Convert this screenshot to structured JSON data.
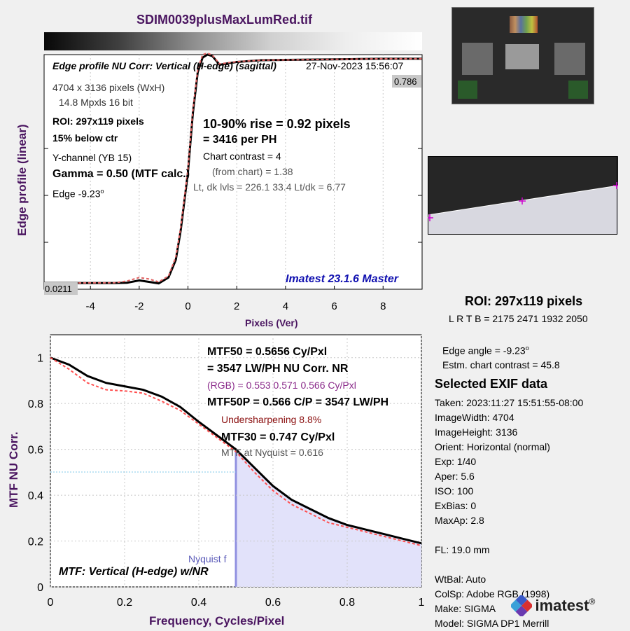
{
  "title": "SDIM0039plusMaxLumRed.tif",
  "edge_panel": {
    "heading": "Edge profile  NU Corr: Vertical (H-edge) (sagittal)",
    "date": "27-Nov-2023 15:56:07",
    "pixels": "4704 x 3136 pixels (WxH)",
    "mpxls": "14.8 Mpxls   16 bit",
    "roi": "ROI:  297x119 pixels",
    "below": "15% below ctr",
    "channel": "Y-channel  (YB 15)",
    "gamma": "Gamma = 0.50 (MTF calc.)",
    "edge_prefix": "Edge  -9.23",
    "edge_suffix": "o",
    "rise": "10-90% rise = 0.92 pixels",
    "per_ph": "=   3416 per PH",
    "contrast": "Chart contrast = 4",
    "from_chart": "(from chart) =  1.38",
    "levels": "Lt, dk lvls = 226.1  33.4  Lt/dk = 6.77",
    "version": "Imatest 23.1.6 Master",
    "right_value": "0.786",
    "left_value": "0.0211",
    "ylabel": "Edge profile (linear)",
    "xlabel": "Pixels (Ver)"
  },
  "mtf_panel": {
    "mtf50": "MTF50 = 0.5656 Cy/Pxl",
    "lwph": "= 3547 LW/PH  NU Corr.  NR",
    "rgb": "(RGB) = 0.553  0.571  0.566 Cy/Pxl",
    "mtf50p": "MTF50P = 0.566 C/P = 3547 LW/PH",
    "under": "Undersharpening  8.8%",
    "mtf30": "MTF30 = 0.747 Cy/Pxl",
    "nyq_text": "MTF at Nyquist = 0.616",
    "nyq_label": "Nyquist f",
    "footer": "MTF: Vertical (H-edge) w/NR",
    "ylabel": "MTF  NU Corr.",
    "xlabel": "Frequency, Cycles/Pixel"
  },
  "roi_info": {
    "roi": "ROI:  297x119 pixels",
    "lrtb": "L R  T B = 2175 2471  1932 2050",
    "edge_angle_prefix": "Edge angle = -9.23",
    "edge_angle_suffix": "o",
    "contrast": "Estm. chart contrast = 45.8"
  },
  "exif": {
    "heading": "Selected EXIF data",
    "taken": "Taken: 2023:11:27 15:51:55-08:00",
    "width": "ImageWidth:  4704",
    "height": "ImageHeight:  3136",
    "orient": "Orient: Horizontal (normal)",
    "exp": "Exp:     1/40",
    "aper": "Aper:    5.6",
    "iso": "ISO:    100",
    "exbias": "ExBias:  0",
    "maxap": "MaxAp:  2.8",
    "fl": "FL:      19.0 mm",
    "wtbal": "WtBal:  Auto",
    "colsp": "ColSp:  Adobe RGB (1998)",
    "make": "Make:  SIGMA",
    "model": "Model:  SIGMA DP1 Merrill"
  },
  "logo": {
    "text": "imatest",
    "reg": "®"
  },
  "chart_data": [
    {
      "type": "line",
      "xlabel": "Pixels (Ver)",
      "ylabel": "Edge profile (linear)",
      "xlim": [
        -5.9,
        9.6
      ],
      "ylim": [
        0,
        0.8
      ],
      "xticks": [
        "-4",
        "-2",
        "0",
        "2",
        "4",
        "6",
        "8"
      ],
      "xtick_values": [
        -4,
        -2,
        0,
        2,
        4,
        6,
        8
      ],
      "series": [
        {
          "color": "#000000",
          "x": [
            -5.9,
            -3,
            -2.5,
            -2,
            -1.6,
            -1.2,
            -0.8,
            -0.5,
            -0.3,
            0,
            0.2,
            0.4,
            0.6,
            0.8,
            1,
            1.3,
            1.6,
            2,
            3,
            4,
            5,
            6,
            7,
            8,
            9.6
          ],
          "y": [
            0.0211,
            0.0211,
            0.022,
            0.03,
            0.025,
            0.02,
            0.04,
            0.1,
            0.2,
            0.4,
            0.6,
            0.74,
            0.79,
            0.8,
            0.795,
            0.765,
            0.77,
            0.775,
            0.781,
            0.782,
            0.783,
            0.784,
            0.785,
            0.786,
            0.786
          ]
        },
        {
          "color": "#e06060",
          "x": [
            -5.9,
            -3,
            -2.5,
            -2,
            -1.6,
            -1.2,
            -0.8,
            -0.5,
            -0.3,
            0,
            0.2,
            0.4,
            0.6,
            0.8,
            1,
            1.3,
            1.6,
            2,
            3,
            4,
            5,
            6,
            7,
            8,
            9.6
          ],
          "y": [
            0.0211,
            0.022,
            0.028,
            0.04,
            0.035,
            0.025,
            0.045,
            0.11,
            0.21,
            0.41,
            0.61,
            0.75,
            0.8,
            0.805,
            0.798,
            0.768,
            0.772,
            0.776,
            0.781,
            0.782,
            0.783,
            0.784,
            0.785,
            0.786,
            0.786
          ]
        }
      ]
    },
    {
      "type": "line",
      "xlabel": "Frequency, Cycles/Pixel",
      "ylabel": "MTF  NU Corr.",
      "xlim": [
        0,
        1
      ],
      "ylim": [
        0,
        1.1
      ],
      "xticks": [
        "0",
        "0.2",
        "0.4",
        "0.6",
        "0.8",
        "1"
      ],
      "xtick_values": [
        0,
        0.2,
        0.4,
        0.6,
        0.8,
        1
      ],
      "yticks": [
        "0",
        "0.2",
        "0.4",
        "0.6",
        "0.8",
        "1"
      ],
      "ytick_values": [
        0,
        0.2,
        0.4,
        0.6,
        0.8,
        1
      ],
      "nyquist": 0.5,
      "series": [
        {
          "color": "#000000",
          "x": [
            0,
            0.05,
            0.1,
            0.15,
            0.2,
            0.25,
            0.3,
            0.35,
            0.4,
            0.45,
            0.5,
            0.55,
            0.6,
            0.65,
            0.7,
            0.75,
            0.8,
            0.85,
            0.9,
            0.95,
            1
          ],
          "y": [
            1,
            0.97,
            0.92,
            0.89,
            0.875,
            0.86,
            0.83,
            0.785,
            0.72,
            0.66,
            0.6,
            0.52,
            0.44,
            0.38,
            0.34,
            0.3,
            0.27,
            0.25,
            0.23,
            0.21,
            0.19
          ]
        },
        {
          "color": "#ff5050",
          "x": [
            0,
            0.05,
            0.1,
            0.15,
            0.2,
            0.25,
            0.3,
            0.35,
            0.4,
            0.45,
            0.5,
            0.55,
            0.6,
            0.65,
            0.7,
            0.75,
            0.8,
            0.85,
            0.9,
            0.95,
            1
          ],
          "y": [
            1,
            0.95,
            0.89,
            0.86,
            0.855,
            0.845,
            0.81,
            0.77,
            0.71,
            0.65,
            0.59,
            0.5,
            0.42,
            0.36,
            0.32,
            0.28,
            0.26,
            0.24,
            0.22,
            0.2,
            0.18
          ]
        }
      ]
    }
  ]
}
